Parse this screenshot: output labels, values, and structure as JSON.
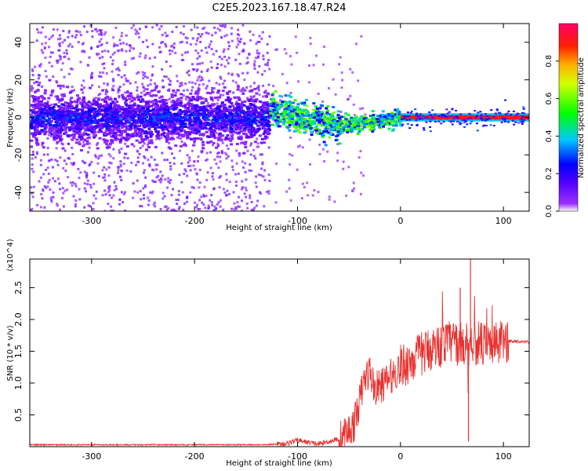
{
  "figure": {
    "title": "C2E5.2023.167.18.47.R24"
  },
  "colors": {
    "snr_line": "#e8312f",
    "axis": "#000000",
    "background": "#ffffff"
  },
  "chart_data": [
    {
      "type": "heatmap",
      "name": "spectrogram",
      "xlabel": "Height of straight line (km)",
      "ylabel": "Frequency (Hz)",
      "xlim": [
        -360,
        125
      ],
      "ylim": [
        -50,
        50
      ],
      "xticks": [
        -300,
        -200,
        -100,
        0,
        100
      ],
      "xtick_labels": [
        "-300",
        "-200",
        "-100",
        "0",
        "100"
      ],
      "yticks": [
        -40,
        -20,
        0,
        20,
        40
      ],
      "ytick_labels": [
        "-40",
        "-20",
        "0",
        "20",
        "40"
      ],
      "colorbar": {
        "label": "Normalized spectral amplitude",
        "range": [
          0,
          1
        ],
        "ticks": [
          0,
          0.2,
          0.4,
          0.6,
          0.8
        ],
        "tick_labels": [
          "0.0",
          "0.2",
          "0.4",
          "0.6",
          "0.8"
        ],
        "colormap": "rainbow (violet → blue → cyan → green → yellow → red → magenta)"
      },
      "description_segments": [
        {
          "x_range": [
            -360,
            -128
          ],
          "character": "broad noise, violet/blue band centered at 0 Hz with scattered speckle up to ±50 Hz"
        },
        {
          "x_range": [
            -128,
            -60
          ],
          "character": "band drifting from about +5 Hz to -4 Hz with cyan/green spots"
        },
        {
          "x_range": [
            -60,
            0
          ],
          "character": "narrowing band returning to 0 Hz"
        },
        {
          "x_range": [
            0,
            125
          ],
          "character": "clean narrow line at 0 Hz, red/magenta amplitude"
        }
      ]
    },
    {
      "type": "line",
      "name": "snr",
      "xlabel": "Height of straight line (km)",
      "ylabel": "SNR (10 * v/v)",
      "y_multiplier_label": "(x10^4)",
      "xlim": [
        -360,
        125
      ],
      "ylim": [
        0,
        2.95
      ],
      "xticks": [
        -300,
        -200,
        -100,
        0,
        100
      ],
      "xtick_labels": [
        "-300",
        "-200",
        "-100",
        "0",
        "100"
      ],
      "yticks": [
        0.5,
        1.0,
        1.5,
        2.0,
        2.5
      ],
      "ytick_labels": [
        "0.5",
        "1.0",
        "1.5",
        "2.0",
        "2.5"
      ],
      "series": [
        {
          "x": [
            -360,
            -300,
            -200,
            -130,
            -110,
            -100,
            -90,
            -80,
            -70,
            -60,
            -50,
            -45,
            -40,
            -35,
            -30,
            -25,
            -20,
            -15,
            -10,
            -5,
            0,
            10,
            20,
            30,
            40,
            50,
            60,
            70,
            80,
            90,
            100,
            110,
            125
          ],
          "y": [
            0.03,
            0.03,
            0.03,
            0.03,
            0.05,
            0.1,
            0.07,
            0.04,
            0.08,
            0.12,
            0.25,
            0.35,
            0.7,
            1.05,
            1.2,
            0.9,
            0.95,
            1.0,
            1.1,
            1.15,
            1.25,
            1.35,
            1.45,
            1.55,
            1.6,
            1.65,
            1.6,
            1.65,
            1.6,
            1.58,
            1.65,
            1.66,
            1.65
          ]
        }
      ],
      "peak_annotations": [
        {
          "x": 58,
          "y": 2.5
        },
        {
          "x": 68,
          "y": 2.95
        },
        {
          "x": 66,
          "y": 0.08
        }
      ]
    }
  ]
}
